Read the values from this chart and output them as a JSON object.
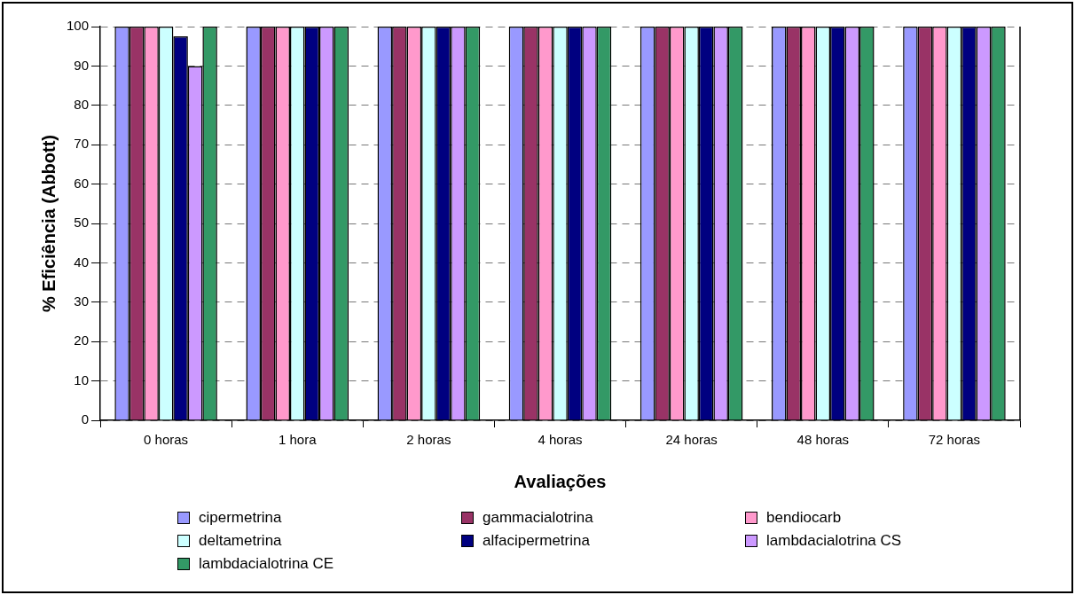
{
  "chart_data": {
    "type": "bar",
    "xlabel": "Avaliações",
    "ylabel": "% Eficiência (Abbott)",
    "categories": [
      "0 horas",
      "1 hora",
      "2 horas",
      "4 horas",
      "24 horas",
      "48 horas",
      "72 horas"
    ],
    "series": [
      {
        "name": "cipermetrina",
        "color": "#9999ff",
        "values": [
          100,
          100,
          100,
          100,
          100,
          100,
          100
        ]
      },
      {
        "name": "gammacialotrina",
        "color": "#993366",
        "values": [
          100,
          100,
          100,
          100,
          100,
          100,
          100
        ]
      },
      {
        "name": "bendiocarb",
        "color": "#ff99cc",
        "values": [
          100,
          100,
          100,
          100,
          100,
          100,
          100
        ]
      },
      {
        "name": "deltametrina",
        "color": "#ccffff",
        "values": [
          100,
          100,
          100,
          100,
          100,
          100,
          100
        ]
      },
      {
        "name": "alfacipermetrina",
        "color": "#000080",
        "values": [
          97.5,
          100,
          100,
          100,
          100,
          100,
          100
        ]
      },
      {
        "name": "lambdacialotrina CS",
        "color": "#cc99ff",
        "values": [
          90,
          100,
          100,
          100,
          100,
          100,
          100
        ]
      },
      {
        "name": "lambdacialotrina CE",
        "color": "#339966",
        "values": [
          100,
          100,
          100,
          100,
          100,
          100,
          100
        ]
      }
    ],
    "ylim": [
      0,
      100
    ],
    "yticks": [
      0,
      10,
      20,
      30,
      40,
      50,
      60,
      70,
      80,
      90,
      100
    ],
    "grid": "y",
    "legend": "bottom"
  }
}
